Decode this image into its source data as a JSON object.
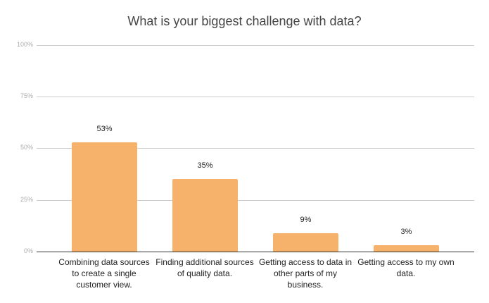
{
  "chart_data": {
    "type": "bar",
    "title": "What is your biggest challenge with data?",
    "xlabel": "",
    "ylabel": "",
    "categories": [
      "Combining data sources to create a single customer view.",
      "Finding additional sources of quality data.",
      "Getting access to data in other parts of my business.",
      "Getting access to my own data."
    ],
    "values": [
      53,
      35,
      9,
      3
    ],
    "value_labels": [
      "53%",
      "35%",
      "9%",
      "3%"
    ],
    "ylim": [
      0,
      100
    ],
    "yticks": [
      "0%",
      "25%",
      "50%",
      "75%",
      "100%"
    ],
    "grid": true,
    "legend": "none",
    "bar_color": "#F6B26B"
  },
  "labels": {
    "title": "What is your biggest challenge with data?",
    "yticks": {
      "t0": "0%",
      "t25": "25%",
      "t50": "50%",
      "t75": "75%",
      "t100": "100%"
    },
    "bars": [
      {
        "value_label": "53%",
        "category": "Combining data sources to create a single customer view."
      },
      {
        "value_label": "35%",
        "category": "Finding additional sources of quality data."
      },
      {
        "value_label": "9%",
        "category": "Getting access to data in other parts of my business."
      },
      {
        "value_label": "3%",
        "category": "Getting access to my own data."
      }
    ]
  }
}
